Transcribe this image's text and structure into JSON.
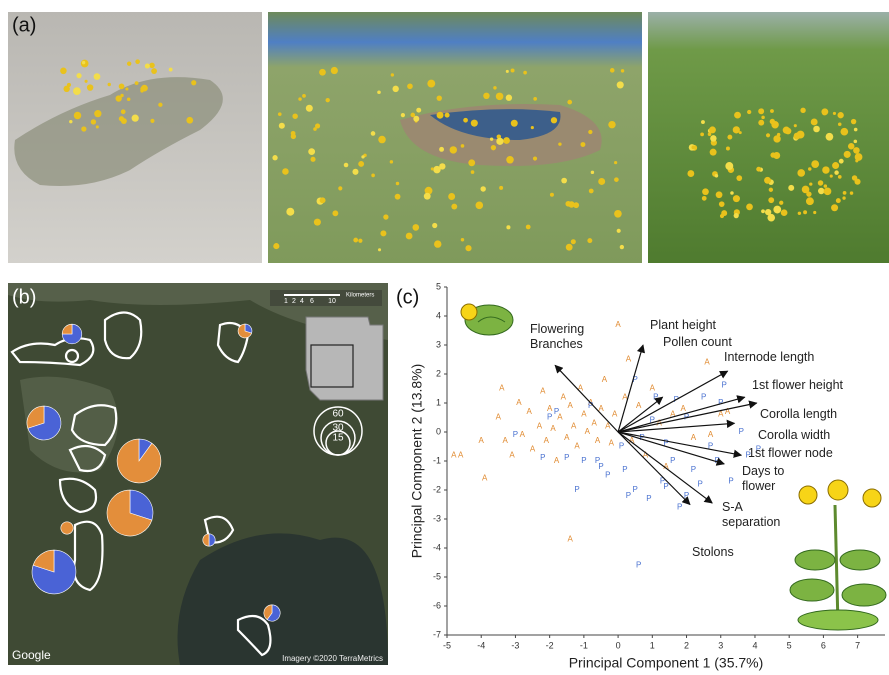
{
  "panel_labels": [
    "(a)",
    "(b)",
    "(c)"
  ],
  "map": {
    "attribution": "Google",
    "imagery": "Imagery ©2020 TerraMetrics",
    "scale_labels": [
      "1",
      "2",
      "4",
      "6",
      "10"
    ],
    "scale_unit": "Kilometers"
  },
  "chart_data": [
    {
      "type": "pie",
      "colors": [
        "#4a63d6",
        "#e38e3b"
      ],
      "values": [
        75,
        30,
        70,
        10,
        30,
        0,
        80,
        50,
        60
      ],
      "sizes": [
        10,
        5,
        30,
        50,
        55,
        4,
        50,
        4,
        7
      ],
      "size_legend": [
        60,
        30,
        15
      ]
    },
    {
      "type": "scatter",
      "xlabel": "Principal Component 1 (35.7%)",
      "ylabel": "Principal Component 2 (13.8%)",
      "xlim": [
        -5,
        7.8
      ],
      "ylim": [
        -7,
        5
      ],
      "xticks": [
        -5,
        -4,
        -3,
        -2,
        -1,
        0,
        1,
        2,
        3,
        4,
        5,
        6,
        7
      ],
      "yticks": [
        -7,
        -6,
        -5,
        -4,
        -3,
        -2,
        -1,
        0,
        1,
        2,
        3,
        4,
        5
      ],
      "series": [
        {
          "name": "A",
          "color": "#e0892e",
          "x": [
            -4.8,
            -4.6,
            -4.0,
            -3.9,
            -3.5,
            -3.3,
            -3.1,
            -2.9,
            -2.8,
            -2.6,
            -2.5,
            -2.3,
            -2.2,
            -2.1,
            -2.0,
            -1.9,
            -1.8,
            -1.7,
            -1.6,
            -1.5,
            -1.4,
            -1.3,
            -1.2,
            -1.1,
            -1.0,
            -0.9,
            -0.8,
            -0.7,
            -0.6,
            -0.5,
            -0.4,
            -0.3,
            -0.2,
            -0.1,
            0.0,
            0.2,
            0.4,
            0.6,
            0.8,
            1.0,
            1.2,
            1.4,
            1.6,
            1.9,
            2.2,
            2.6,
            3.0,
            3.2,
            -1.4,
            -3.4,
            2.7,
            0.3
          ],
          "y": [
            -0.8,
            -0.8,
            -0.3,
            -1.6,
            0.5,
            -0.3,
            -0.8,
            1.0,
            -0.1,
            0.7,
            -0.6,
            0.2,
            1.4,
            -0.3,
            0.8,
            0.1,
            -1.0,
            0.5,
            1.2,
            -0.2,
            0.9,
            0.2,
            -0.5,
            1.5,
            0.6,
            0.0,
            1.0,
            0.3,
            -0.3,
            0.8,
            1.8,
            0.2,
            -0.4,
            0.6,
            3.7,
            1.2,
            -0.3,
            0.9,
            -0.8,
            1.5,
            0.3,
            -1.2,
            0.6,
            0.8,
            -0.2,
            2.4,
            0.6,
            0.7,
            -3.7,
            1.5,
            -0.1,
            2.5
          ]
        },
        {
          "name": "P",
          "color": "#4a72d0",
          "x": [
            -3.0,
            -2.2,
            -2.0,
            -1.8,
            -1.5,
            -1.2,
            -1.0,
            -0.8,
            -0.6,
            -0.5,
            -0.3,
            0.1,
            0.2,
            0.3,
            0.5,
            0.5,
            0.6,
            0.7,
            0.9,
            1.0,
            1.1,
            1.3,
            1.4,
            1.6,
            1.7,
            1.8,
            2.0,
            2.2,
            2.4,
            2.5,
            2.7,
            2.9,
            3.0,
            3.1,
            3.3,
            3.6,
            3.8,
            4.1,
            1.4,
            2.0
          ],
          "y": [
            -0.1,
            -0.9,
            0.5,
            0.7,
            -0.9,
            -2.0,
            -1.0,
            0.9,
            -1.0,
            -1.2,
            -1.5,
            -0.5,
            -1.3,
            -2.2,
            -2.0,
            1.8,
            -4.6,
            -0.2,
            -2.3,
            0.4,
            1.2,
            -1.7,
            -0.4,
            -1.0,
            1.1,
            -2.6,
            0.5,
            -1.3,
            -1.8,
            1.2,
            -0.5,
            -1.0,
            1.0,
            1.6,
            -1.7,
            0.0,
            -0.8,
            -0.6,
            -1.9,
            -2.2
          ]
        }
      ],
      "vectors": [
        {
          "label": "Flowering Branches",
          "x": -1.84,
          "y": 2.3
        },
        {
          "label": "Plant height",
          "x": 0.73,
          "y": 3.0
        },
        {
          "label": "Pollen count",
          "x": 1.3,
          "y": 1.2
        },
        {
          "label": "Internode length",
          "x": 3.2,
          "y": 2.1
        },
        {
          "label": "1st flower height",
          "x": 3.7,
          "y": 1.2
        },
        {
          "label": "Corolla length",
          "x": 4.05,
          "y": 1.0
        },
        {
          "label": "Corolla width",
          "x": 3.4,
          "y": 0.3
        },
        {
          "label": "1st flower node",
          "x": 3.6,
          "y": -0.8
        },
        {
          "label": "Days to flower",
          "x": 3.1,
          "y": -1.1
        },
        {
          "label": "S-A separation",
          "x": 2.75,
          "y": -2.45
        },
        {
          "label": "Stolons",
          "x": 2.1,
          "y": -2.5
        }
      ]
    }
  ]
}
